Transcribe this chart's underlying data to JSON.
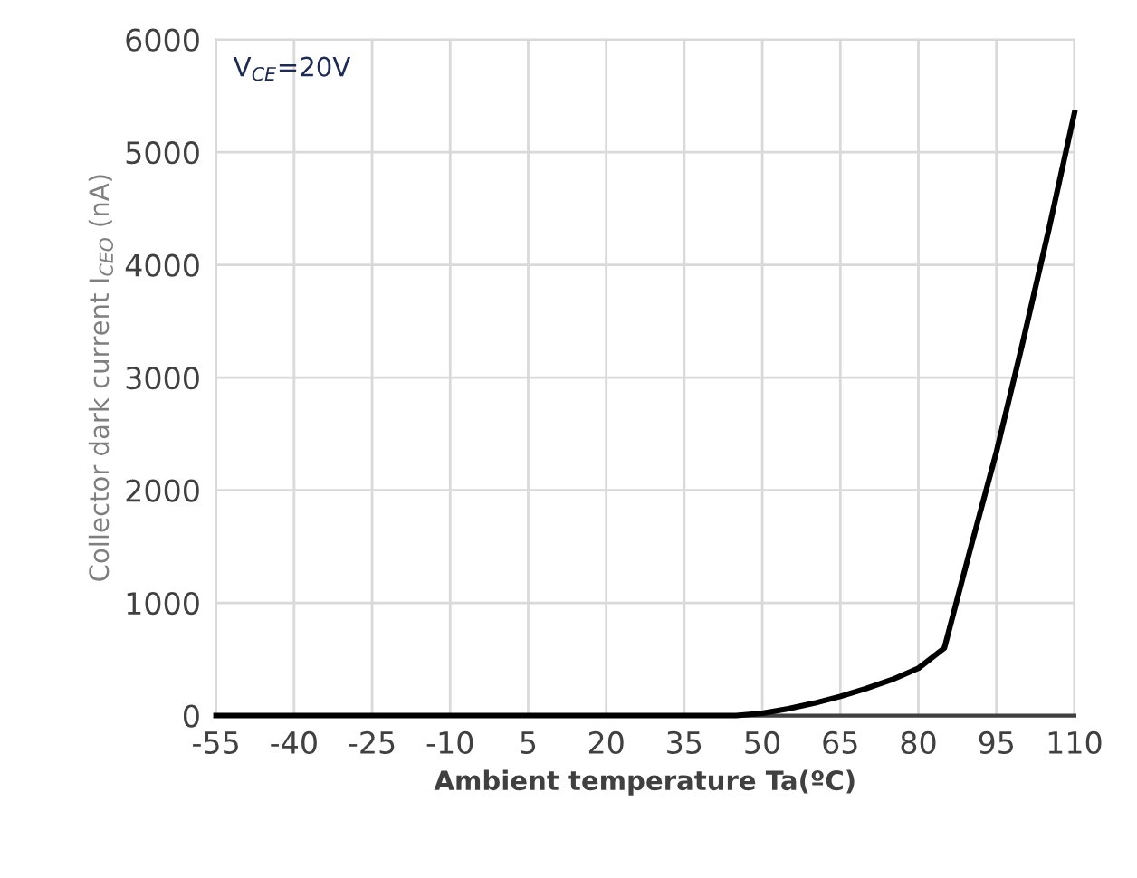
{
  "chart_data": {
    "type": "line",
    "xlabel": "Ambient temperature Ta(ºC)",
    "ylabel": "Collector dark current I$_{CEO}$ (nA)",
    "annotations": [
      "V$_{CE}$=20V"
    ],
    "x": [
      -55,
      -40,
      -25,
      -10,
      5,
      20,
      35,
      40,
      45,
      50,
      55,
      60,
      65,
      70,
      75,
      80,
      85,
      90,
      95,
      100,
      105,
      110
    ],
    "series": [
      {
        "color": "#000000",
        "values": [
          0,
          0,
          0,
          0,
          0,
          0,
          0,
          0,
          0,
          20,
          60,
          110,
          170,
          240,
          320,
          420,
          600,
          1480,
          2340,
          3300,
          4300,
          5350
        ]
      }
    ],
    "xlim": [
      -55,
      110
    ],
    "xticks": [
      -55,
      -40,
      -25,
      -10,
      5,
      20,
      35,
      50,
      65,
      80,
      95,
      110
    ],
    "ylim": [
      0,
      6000
    ],
    "yticks": [
      0,
      1000,
      2000,
      3000,
      4000,
      5000,
      6000
    ],
    "grid": true,
    "marker": "none",
    "line_style": "solid",
    "legend": false
  }
}
